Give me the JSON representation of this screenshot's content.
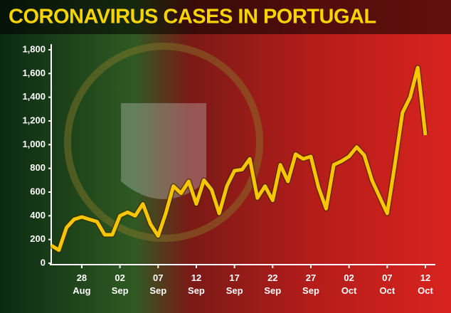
{
  "chart_data": {
    "type": "line",
    "title": "CORONAVIRUS CASES IN PORTUGAL",
    "categories": [
      null,
      null,
      null,
      null,
      "28 Aug",
      null,
      null,
      null,
      null,
      "02 Sep",
      null,
      null,
      null,
      null,
      "07 Sep",
      null,
      null,
      null,
      null,
      "12 Sep",
      null,
      null,
      null,
      null,
      "17 Sep",
      null,
      null,
      null,
      null,
      "22 Sep",
      null,
      null,
      null,
      null,
      "27 Sep",
      null,
      null,
      null,
      null,
      "02 Oct",
      null,
      null,
      null,
      null,
      "07 Oct",
      null,
      null,
      null,
      null,
      "12 Oct"
    ],
    "values": [
      150,
      110,
      300,
      370,
      390,
      370,
      350,
      240,
      240,
      400,
      430,
      400,
      500,
      330,
      230,
      420,
      650,
      590,
      690,
      500,
      700,
      620,
      420,
      650,
      780,
      790,
      880,
      550,
      650,
      530,
      830,
      690,
      920,
      880,
      900,
      640,
      460,
      830,
      860,
      900,
      980,
      910,
      700,
      560,
      420,
      830,
      1270,
      1400,
      1650,
      1080
    ],
    "color": "#f7c600",
    "ylim": [
      0,
      1800
    ],
    "yticks": [
      0,
      200,
      400,
      600,
      800,
      {
        "value": 1000,
        "label": "1,000"
      },
      {
        "value": 1200,
        "label": "1,200"
      },
      {
        "value": 1400,
        "label": "1,400"
      },
      {
        "value": 1600,
        "label": "1,600"
      },
      {
        "value": 1800,
        "label": "1,800"
      }
    ]
  }
}
